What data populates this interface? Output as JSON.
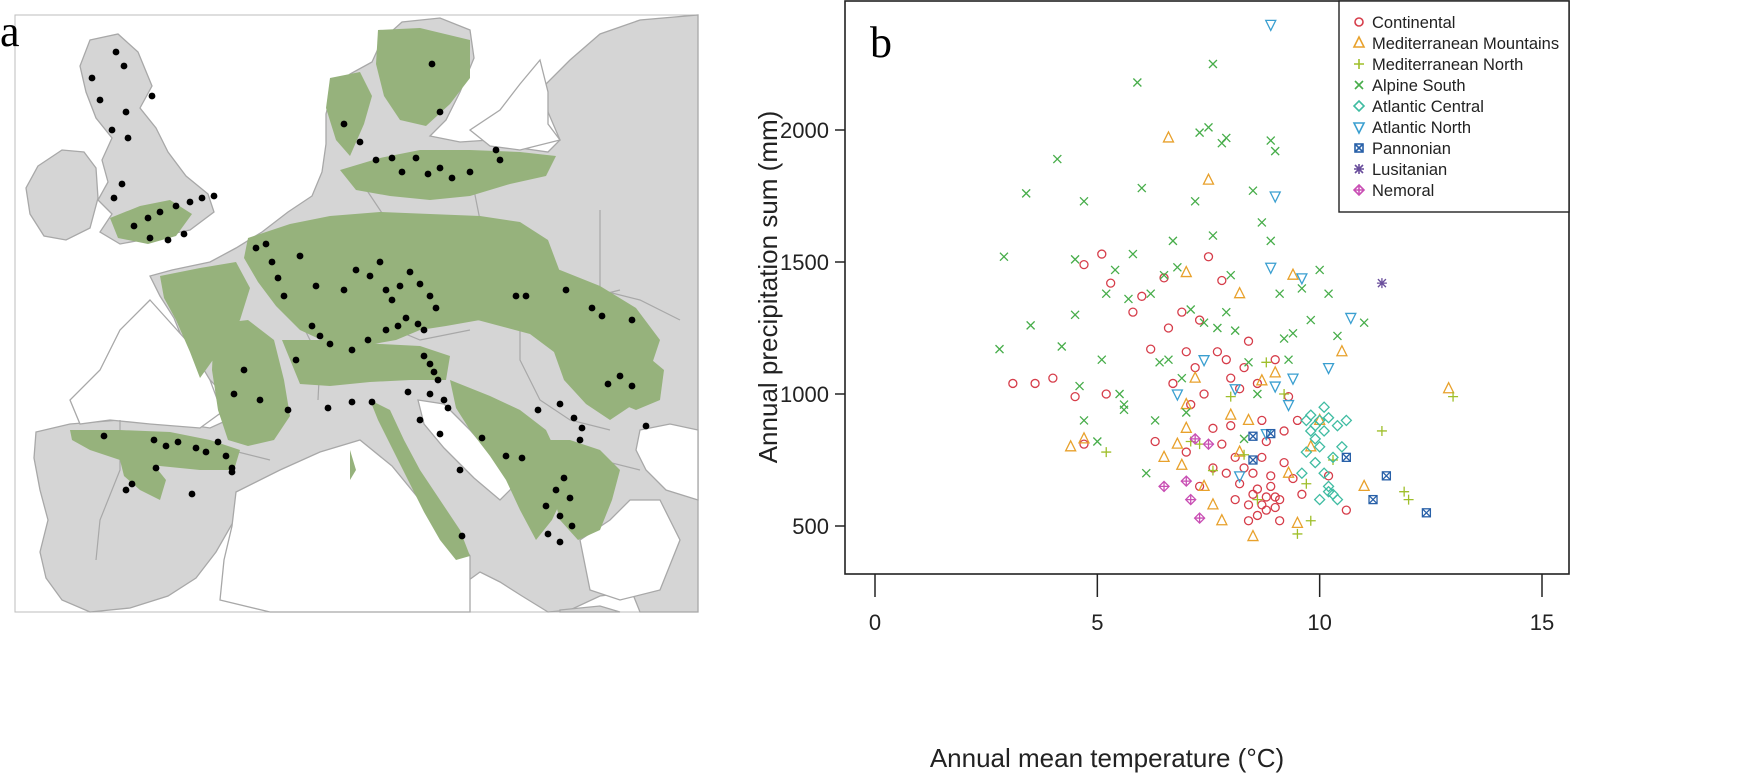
{
  "panel_a": {
    "letter": "a",
    "colors": {
      "sea": "#ffffff",
      "land": "#d5d5d5",
      "border": "#a8a8a8",
      "forest": "#96b27c",
      "site": "#000000"
    }
  },
  "chart_data": {
    "type": "scatter",
    "panel_letter": "b",
    "xlabel": "Annual mean temperature (°C)",
    "ylabel": "Annual precipitation sum (mm)",
    "xlim": [
      -0.6,
      15.5
    ],
    "ylim": [
      200,
      2450
    ],
    "xticks": [
      0,
      5,
      10,
      15
    ],
    "yticks": [
      500,
      1000,
      1500,
      2000
    ],
    "grid": false,
    "legend_position": "top-right",
    "series": [
      {
        "name": "Continental",
        "marker": "circle",
        "color": "#d63d4a",
        "points": [
          [
            3.1,
            1040
          ],
          [
            3.6,
            1040
          ],
          [
            4.0,
            1060
          ],
          [
            4.5,
            990
          ],
          [
            4.7,
            810
          ],
          [
            4.7,
            1490
          ],
          [
            5.1,
            1530
          ],
          [
            5.2,
            1000
          ],
          [
            5.3,
            1420
          ],
          [
            5.8,
            1310
          ],
          [
            6.0,
            1370
          ],
          [
            6.2,
            1170
          ],
          [
            6.3,
            820
          ],
          [
            6.5,
            1440
          ],
          [
            6.6,
            1250
          ],
          [
            6.7,
            1040
          ],
          [
            6.9,
            1310
          ],
          [
            7.0,
            1160
          ],
          [
            7.1,
            960
          ],
          [
            7.2,
            1100
          ],
          [
            7.3,
            1280
          ],
          [
            7.4,
            1000
          ],
          [
            7.5,
            1520
          ],
          [
            7.6,
            870
          ],
          [
            7.7,
            1160
          ],
          [
            7.8,
            1430
          ],
          [
            7.9,
            1130
          ],
          [
            8.0,
            1060
          ],
          [
            8.0,
            880
          ],
          [
            8.1,
            760
          ],
          [
            8.2,
            1020
          ],
          [
            8.3,
            1100
          ],
          [
            8.4,
            1200
          ],
          [
            8.5,
            700
          ],
          [
            8.6,
            1040
          ],
          [
            8.7,
            900
          ],
          [
            8.8,
            820
          ],
          [
            8.9,
            690
          ],
          [
            9.0,
            1130
          ],
          [
            9.1,
            600
          ],
          [
            9.2,
            860
          ],
          [
            9.3,
            990
          ],
          [
            9.5,
            900
          ],
          [
            10.2,
            690
          ],
          [
            10.6,
            560
          ],
          [
            7.0,
            780
          ],
          [
            7.3,
            650
          ],
          [
            7.6,
            720
          ],
          [
            7.8,
            810
          ],
          [
            8.2,
            660
          ],
          [
            8.3,
            720
          ],
          [
            8.4,
            580
          ],
          [
            8.5,
            620
          ],
          [
            8.6,
            540
          ],
          [
            8.7,
            580
          ],
          [
            8.8,
            610
          ],
          [
            8.9,
            650
          ],
          [
            9.0,
            570
          ],
          [
            9.1,
            520
          ],
          [
            8.4,
            520
          ],
          [
            8.6,
            640
          ],
          [
            8.8,
            560
          ],
          [
            9.0,
            610
          ],
          [
            9.2,
            740
          ],
          [
            9.4,
            680
          ],
          [
            9.6,
            620
          ],
          [
            8.1,
            600
          ],
          [
            7.9,
            700
          ],
          [
            8.7,
            760
          ]
        ]
      },
      {
        "name": "Mediterranean Mountains",
        "marker": "triangle-up",
        "color": "#e8a12c",
        "points": [
          [
            6.6,
            1970
          ],
          [
            7.5,
            1810
          ],
          [
            7.0,
            1460
          ],
          [
            8.2,
            1380
          ],
          [
            4.4,
            800
          ],
          [
            4.7,
            830
          ],
          [
            6.5,
            760
          ],
          [
            6.8,
            810
          ],
          [
            7.0,
            870
          ],
          [
            7.2,
            1060
          ],
          [
            7.4,
            650
          ],
          [
            7.6,
            580
          ],
          [
            7.8,
            520
          ],
          [
            8.0,
            920
          ],
          [
            8.2,
            780
          ],
          [
            8.5,
            460
          ],
          [
            8.7,
            1050
          ],
          [
            9.0,
            1080
          ],
          [
            9.4,
            1450
          ],
          [
            9.5,
            510
          ],
          [
            9.8,
            800
          ],
          [
            10.0,
            900
          ],
          [
            10.5,
            1160
          ],
          [
            11.0,
            650
          ],
          [
            12.9,
            1020
          ],
          [
            7.0,
            960
          ],
          [
            8.4,
            900
          ],
          [
            9.3,
            700
          ],
          [
            6.9,
            730
          ]
        ]
      },
      {
        "name": "Mediterranean North",
        "marker": "plus",
        "color": "#9fbf2a",
        "points": [
          [
            5.2,
            780
          ],
          [
            7.3,
            810
          ],
          [
            7.6,
            710
          ],
          [
            8.0,
            990
          ],
          [
            8.3,
            770
          ],
          [
            9.2,
            1000
          ],
          [
            9.5,
            470
          ],
          [
            9.8,
            520
          ],
          [
            10.3,
            750
          ],
          [
            11.4,
            860
          ],
          [
            11.9,
            630
          ],
          [
            12.0,
            600
          ],
          [
            13.0,
            990
          ],
          [
            8.8,
            1120
          ],
          [
            9.7,
            660
          ],
          [
            7.1,
            820
          ],
          [
            8.6,
            600
          ]
        ]
      },
      {
        "name": "Alpine South",
        "marker": "x",
        "color": "#47ad4a",
        "points": [
          [
            2.8,
            1170
          ],
          [
            2.9,
            1520
          ],
          [
            3.4,
            1760
          ],
          [
            3.5,
            1260
          ],
          [
            4.1,
            1890
          ],
          [
            4.2,
            1180
          ],
          [
            4.5,
            1300
          ],
          [
            4.5,
            1510
          ],
          [
            4.7,
            1730
          ],
          [
            4.7,
            900
          ],
          [
            5.1,
            1130
          ],
          [
            5.2,
            1380
          ],
          [
            5.4,
            1470
          ],
          [
            5.6,
            960
          ],
          [
            5.7,
            1360
          ],
          [
            5.8,
            1530
          ],
          [
            5.9,
            2180
          ],
          [
            6.0,
            1780
          ],
          [
            6.1,
            700
          ],
          [
            6.4,
            1120
          ],
          [
            6.7,
            1580
          ],
          [
            6.9,
            1060
          ],
          [
            7.0,
            930
          ],
          [
            7.2,
            1730
          ],
          [
            7.3,
            1990
          ],
          [
            7.4,
            1270
          ],
          [
            7.5,
            2010
          ],
          [
            7.6,
            2250
          ],
          [
            7.6,
            1600
          ],
          [
            7.8,
            1950
          ],
          [
            7.9,
            1970
          ],
          [
            8.1,
            1240
          ],
          [
            8.3,
            830
          ],
          [
            8.5,
            1770
          ],
          [
            8.7,
            1650
          ],
          [
            8.9,
            1960
          ],
          [
            8.9,
            1580
          ],
          [
            9.0,
            1920
          ],
          [
            9.1,
            1380
          ],
          [
            9.4,
            1230
          ],
          [
            9.6,
            1400
          ],
          [
            9.8,
            1280
          ],
          [
            10.0,
            1470
          ],
          [
            10.2,
            1380
          ],
          [
            10.4,
            1220
          ],
          [
            11.0,
            1270
          ],
          [
            5.0,
            820
          ],
          [
            5.5,
            1000
          ],
          [
            6.2,
            1380
          ],
          [
            6.5,
            1450
          ],
          [
            7.1,
            1320
          ],
          [
            7.9,
            1310
          ],
          [
            8.0,
            1450
          ],
          [
            8.4,
            1120
          ],
          [
            9.3,
            1130
          ],
          [
            6.8,
            1480
          ],
          [
            6.3,
            900
          ],
          [
            7.7,
            1250
          ],
          [
            8.6,
            1000
          ],
          [
            9.2,
            1210
          ],
          [
            6.6,
            1130
          ],
          [
            5.6,
            940
          ],
          [
            4.6,
            1030
          ]
        ]
      },
      {
        "name": "Atlantic Central",
        "marker": "diamond",
        "color": "#3fbca2",
        "points": [
          [
            9.8,
            920
          ],
          [
            9.9,
            880
          ],
          [
            10.0,
            900
          ],
          [
            10.1,
            860
          ],
          [
            10.2,
            910
          ],
          [
            10.0,
            800
          ],
          [
            9.9,
            740
          ],
          [
            10.1,
            700
          ],
          [
            10.2,
            650
          ],
          [
            10.3,
            620
          ],
          [
            10.4,
            600
          ],
          [
            9.8,
            860
          ],
          [
            10.3,
            760
          ],
          [
            10.5,
            800
          ],
          [
            10.1,
            950
          ],
          [
            9.6,
            700
          ],
          [
            9.7,
            780
          ],
          [
            9.9,
            830
          ],
          [
            10.4,
            880
          ],
          [
            10.6,
            900
          ],
          [
            10.0,
            600
          ],
          [
            10.2,
            630
          ],
          [
            9.7,
            900
          ]
        ]
      },
      {
        "name": "Atlantic North",
        "marker": "triangle-down",
        "color": "#3a9fd0",
        "points": [
          [
            8.9,
            2400
          ],
          [
            9.0,
            1750
          ],
          [
            8.9,
            1480
          ],
          [
            9.6,
            1440
          ],
          [
            10.7,
            1290
          ],
          [
            10.2,
            1100
          ],
          [
            9.4,
            1060
          ],
          [
            9.0,
            1030
          ],
          [
            8.1,
            1020
          ],
          [
            7.4,
            1130
          ],
          [
            6.8,
            1000
          ],
          [
            8.8,
            850
          ],
          [
            9.3,
            960
          ],
          [
            8.2,
            690
          ]
        ]
      },
      {
        "name": "Pannonian",
        "marker": "square-x",
        "color": "#2860a8",
        "points": [
          [
            8.5,
            840
          ],
          [
            8.5,
            750
          ],
          [
            10.6,
            760
          ],
          [
            11.5,
            690
          ],
          [
            11.2,
            600
          ],
          [
            12.4,
            550
          ],
          [
            8.9,
            850
          ]
        ]
      },
      {
        "name": "Lusitanian",
        "marker": "asterisk",
        "color": "#6a4e9c",
        "points": [
          [
            11.4,
            1420
          ]
        ]
      },
      {
        "name": "Nemoral",
        "marker": "diamond-plus",
        "color": "#c94fb4",
        "points": [
          [
            6.5,
            650
          ],
          [
            7.2,
            830
          ],
          [
            7.5,
            810
          ],
          [
            7.3,
            530
          ],
          [
            7.1,
            600
          ],
          [
            7.0,
            670
          ]
        ]
      }
    ]
  }
}
